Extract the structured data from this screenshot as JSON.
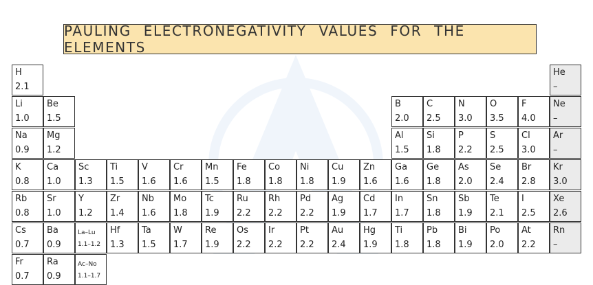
{
  "title": "PAULING ELECTRONEGATIVITY VALUES FOR THE ELEMENTS",
  "colors": {
    "title_bg": "#fbe4ae",
    "noble_bg": "#ebebeb",
    "border": "#333333"
  },
  "elements": [
    {
      "symbol": "H",
      "value": "2.1",
      "row": 1,
      "col": 1
    },
    {
      "symbol": "He",
      "value": "–",
      "row": 1,
      "col": 18,
      "noble": true
    },
    {
      "symbol": "Li",
      "value": "1.0",
      "row": 2,
      "col": 1
    },
    {
      "symbol": "Be",
      "value": "1.5",
      "row": 2,
      "col": 2
    },
    {
      "symbol": "B",
      "value": "2.0",
      "row": 2,
      "col": 13
    },
    {
      "symbol": "C",
      "value": "2.5",
      "row": 2,
      "col": 14
    },
    {
      "symbol": "N",
      "value": "3.0",
      "row": 2,
      "col": 15
    },
    {
      "symbol": "O",
      "value": "3.5",
      "row": 2,
      "col": 16
    },
    {
      "symbol": "F",
      "value": "4.0",
      "row": 2,
      "col": 17
    },
    {
      "symbol": "Ne",
      "value": "–",
      "row": 2,
      "col": 18,
      "noble": true
    },
    {
      "symbol": "Na",
      "value": "0.9",
      "row": 3,
      "col": 1
    },
    {
      "symbol": "Mg",
      "value": "1.2",
      "row": 3,
      "col": 2
    },
    {
      "symbol": "Al",
      "value": "1.5",
      "row": 3,
      "col": 13
    },
    {
      "symbol": "Si",
      "value": "1.8",
      "row": 3,
      "col": 14
    },
    {
      "symbol": "P",
      "value": "2.2",
      "row": 3,
      "col": 15
    },
    {
      "symbol": "S",
      "value": "2.5",
      "row": 3,
      "col": 16
    },
    {
      "symbol": "Cl",
      "value": "3.0",
      "row": 3,
      "col": 17
    },
    {
      "symbol": "Ar",
      "value": "–",
      "row": 3,
      "col": 18,
      "noble": true
    },
    {
      "symbol": "K",
      "value": "0.8",
      "row": 4,
      "col": 1
    },
    {
      "symbol": "Ca",
      "value": "1.0",
      "row": 4,
      "col": 2
    },
    {
      "symbol": "Sc",
      "value": "1.3",
      "row": 4,
      "col": 3
    },
    {
      "symbol": "Ti",
      "value": "1.5",
      "row": 4,
      "col": 4
    },
    {
      "symbol": "V",
      "value": "1.6",
      "row": 4,
      "col": 5
    },
    {
      "symbol": "Cr",
      "value": "1.6",
      "row": 4,
      "col": 6
    },
    {
      "symbol": "Mn",
      "value": "1.5",
      "row": 4,
      "col": 7
    },
    {
      "symbol": "Fe",
      "value": "1.8",
      "row": 4,
      "col": 8
    },
    {
      "symbol": "Co",
      "value": "1.8",
      "row": 4,
      "col": 9
    },
    {
      "symbol": "Ni",
      "value": "1.8",
      "row": 4,
      "col": 10
    },
    {
      "symbol": "Cu",
      "value": "1.9",
      "row": 4,
      "col": 11
    },
    {
      "symbol": "Zn",
      "value": "1.6",
      "row": 4,
      "col": 12
    },
    {
      "symbol": "Ga",
      "value": "1.6",
      "row": 4,
      "col": 13
    },
    {
      "symbol": "Ge",
      "value": "1.8",
      "row": 4,
      "col": 14
    },
    {
      "symbol": "As",
      "value": "2.0",
      "row": 4,
      "col": 15
    },
    {
      "symbol": "Se",
      "value": "2.4",
      "row": 4,
      "col": 16
    },
    {
      "symbol": "Br",
      "value": "2.8",
      "row": 4,
      "col": 17
    },
    {
      "symbol": "Kr",
      "value": "3.0",
      "row": 4,
      "col": 18,
      "noble": true
    },
    {
      "symbol": "Rb",
      "value": "0.8",
      "row": 5,
      "col": 1
    },
    {
      "symbol": "Sr",
      "value": "1.0",
      "row": 5,
      "col": 2
    },
    {
      "symbol": "Y",
      "value": "1.2",
      "row": 5,
      "col": 3
    },
    {
      "symbol": "Zr",
      "value": "1.4",
      "row": 5,
      "col": 4
    },
    {
      "symbol": "Nb",
      "value": "1.6",
      "row": 5,
      "col": 5
    },
    {
      "symbol": "Mo",
      "value": "1.8",
      "row": 5,
      "col": 6
    },
    {
      "symbol": "Tc",
      "value": "1.9",
      "row": 5,
      "col": 7
    },
    {
      "symbol": "Ru",
      "value": "2.2",
      "row": 5,
      "col": 8
    },
    {
      "symbol": "Rh",
      "value": "2.2",
      "row": 5,
      "col": 9
    },
    {
      "symbol": "Pd",
      "value": "2.2",
      "row": 5,
      "col": 10
    },
    {
      "symbol": "Ag",
      "value": "1.9",
      "row": 5,
      "col": 11
    },
    {
      "symbol": "Cd",
      "value": "1.7",
      "row": 5,
      "col": 12
    },
    {
      "symbol": "In",
      "value": "1.7",
      "row": 5,
      "col": 13
    },
    {
      "symbol": "Sn",
      "value": "1.8",
      "row": 5,
      "col": 14
    },
    {
      "symbol": "Sb",
      "value": "1.9",
      "row": 5,
      "col": 15
    },
    {
      "symbol": "Te",
      "value": "2.1",
      "row": 5,
      "col": 16
    },
    {
      "symbol": "I",
      "value": "2.5",
      "row": 5,
      "col": 17
    },
    {
      "symbol": "Xe",
      "value": "2.6",
      "row": 5,
      "col": 18,
      "noble": true
    },
    {
      "symbol": "Cs",
      "value": "0.7",
      "row": 6,
      "col": 1
    },
    {
      "symbol": "Ba",
      "value": "0.9",
      "row": 6,
      "col": 2
    },
    {
      "symbol": "La–Lu",
      "value": "1.1–1.2",
      "row": 6,
      "col": 3,
      "small": true
    },
    {
      "symbol": "Hf",
      "value": "1.3",
      "row": 6,
      "col": 4
    },
    {
      "symbol": "Ta",
      "value": "1.5",
      "row": 6,
      "col": 5
    },
    {
      "symbol": "W",
      "value": "1.7",
      "row": 6,
      "col": 6
    },
    {
      "symbol": "Re",
      "value": "1.9",
      "row": 6,
      "col": 7
    },
    {
      "symbol": "Os",
      "value": "2.2",
      "row": 6,
      "col": 8
    },
    {
      "symbol": "Ir",
      "value": "2.2",
      "row": 6,
      "col": 9
    },
    {
      "symbol": "Pt",
      "value": "2.2",
      "row": 6,
      "col": 10
    },
    {
      "symbol": "Au",
      "value": "2.4",
      "row": 6,
      "col": 11
    },
    {
      "symbol": "Hg",
      "value": "1.9",
      "row": 6,
      "col": 12
    },
    {
      "symbol": "Ti",
      "value": "1.8",
      "row": 6,
      "col": 13
    },
    {
      "symbol": "Pb",
      "value": "1.8",
      "row": 6,
      "col": 14
    },
    {
      "symbol": "Bi",
      "value": "1.9",
      "row": 6,
      "col": 15
    },
    {
      "symbol": "Po",
      "value": "2.0",
      "row": 6,
      "col": 16
    },
    {
      "symbol": "At",
      "value": "2.2",
      "row": 6,
      "col": 17
    },
    {
      "symbol": "Rn",
      "value": "–",
      "row": 6,
      "col": 18,
      "noble": true
    },
    {
      "symbol": "Fr",
      "value": "0.7",
      "row": 7,
      "col": 1
    },
    {
      "symbol": "Ra",
      "value": "0.9",
      "row": 7,
      "col": 2
    },
    {
      "symbol": "Ac–No",
      "value": "1.1–1.7",
      "row": 7,
      "col": 3,
      "small": true
    }
  ]
}
